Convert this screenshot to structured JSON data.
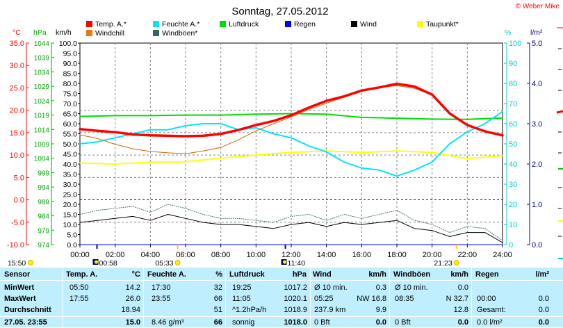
{
  "header": {
    "title": "Sonntag, 27.05.2012",
    "copyright": "© Weber Mike"
  },
  "legend": [
    {
      "label": "Temp. A.*",
      "color": "#ff0000"
    },
    {
      "label": "Feuchte A.*",
      "color": "#00e5ff"
    },
    {
      "label": "Luftdruck",
      "color": "#00dd00"
    },
    {
      "label": "Regen",
      "color": "#0000ff"
    },
    {
      "label": "Wind",
      "color": "#000000"
    },
    {
      "label": "Taupunkt*",
      "color": "#ffff00"
    },
    {
      "label": "Windchill",
      "color": "#ee7711"
    },
    {
      "label": "Windböen*",
      "color": "#336666"
    }
  ],
  "axes": {
    "unit_temp": "°C",
    "unit_hpa": "hPa",
    "unit_kmh": "km/h",
    "unit_pct": "%",
    "unit_rain": "l/m²",
    "temp_ticks": [
      "35.0",
      "30.0",
      "25.0",
      "20.0",
      "15.0",
      "10.0",
      "5.0",
      "0.0",
      "-5.0",
      "-10.0"
    ],
    "hpa_ticks": [
      "1044",
      "1039",
      "1034",
      "1029",
      "1024",
      "1019",
      "1014",
      "1009",
      "1004",
      "999",
      "994",
      "989",
      "984",
      "979",
      "974"
    ],
    "kmh_ticks": [
      "100.0",
      "95.0",
      "90.0",
      "85.0",
      "80.0",
      "75.0",
      "70.0",
      "65.0",
      "60.0",
      "55.0",
      "50.0",
      "45.0",
      "40.0",
      "35.0",
      "30.0",
      "25.0",
      "20.0",
      "15.0",
      "10.0",
      "5.0",
      "0.0"
    ],
    "pct_ticks": [
      "100",
      "90",
      "80",
      "70",
      "60",
      "50",
      "40",
      "30",
      "20",
      "10",
      "0"
    ],
    "rain_ticks": [
      "5.0",
      "4.0",
      "3.0",
      "2.0",
      "1.0",
      "0.0"
    ],
    "time_ticks": [
      "00:00",
      "02:00",
      "04:00",
      "06:00",
      "08:00",
      "10:00",
      "12:00",
      "14:00",
      "16:00",
      "18:00",
      "20:00",
      "22:00",
      "24:00"
    ]
  },
  "markers": {
    "sunrise": "05:33",
    "sunset": "21:23",
    "moonrise": "00:58",
    "moonset": "11:40",
    "left_time": "15:50"
  },
  "chart_data": {
    "type": "line",
    "x_unit": "hours",
    "x_range": [
      0,
      24
    ],
    "series": [
      {
        "name": "Temp. A.*",
        "unit": "°C",
        "axis": "temp",
        "x": [
          0,
          1,
          2,
          3,
          4,
          5,
          6,
          7,
          8,
          9,
          10,
          11,
          12,
          13,
          14,
          15,
          16,
          17,
          18,
          19,
          20,
          21,
          22,
          23,
          24
        ],
        "y": [
          15.8,
          15.4,
          15.1,
          14.6,
          14.4,
          14.3,
          14.2,
          14.3,
          14.7,
          15.6,
          16.7,
          17.6,
          18.9,
          20.6,
          22.1,
          23.1,
          24.4,
          25.1,
          25.9,
          25.3,
          23.5,
          19.3,
          16.7,
          15.3,
          14.4
        ]
      },
      {
        "name": "Windchill",
        "unit": "°C",
        "axis": "temp",
        "x": [
          0,
          1,
          2,
          3,
          4,
          5,
          6,
          7,
          8,
          9,
          10,
          11,
          12,
          13,
          14,
          15,
          16,
          17,
          18,
          19,
          20,
          21,
          22,
          23,
          24
        ],
        "y": [
          14.5,
          13.7,
          12.4,
          11.4,
          10.8,
          10.5,
          10.3,
          10.9,
          11.7,
          13.4,
          15.4,
          17.0,
          18.5,
          20.2,
          21.6,
          22.9,
          24.2,
          25.1,
          25.5,
          24.9,
          23.4,
          19.1,
          16.6,
          15.3,
          14.4
        ]
      },
      {
        "name": "Feuchte A.*",
        "unit": "%",
        "axis": "pct",
        "x": [
          0,
          1,
          2,
          3,
          4,
          5,
          6,
          7,
          8,
          9,
          10,
          11,
          12,
          13,
          14,
          15,
          16,
          17,
          18,
          19,
          20,
          21,
          22,
          23,
          24
        ],
        "y": [
          50,
          51,
          53,
          55,
          57,
          57,
          59,
          60,
          60,
          57,
          58,
          55,
          53,
          49,
          46,
          41,
          38,
          37,
          34,
          37,
          41,
          50,
          56,
          60,
          66
        ]
      },
      {
        "name": "Luftdruck",
        "unit": "hPa",
        "axis": "hpa",
        "x": [
          0,
          2,
          4,
          6,
          8,
          10,
          12,
          14,
          16,
          18,
          20,
          22,
          24
        ],
        "y": [
          1018.5,
          1018.8,
          1018.8,
          1019.0,
          1019.0,
          1019.3,
          1019.5,
          1019.3,
          1018.2,
          1017.9,
          1017.6,
          1017.5,
          1018.0
        ]
      },
      {
        "name": "Taupunkt*",
        "unit": "°C",
        "axis": "temp",
        "x": [
          0,
          2,
          4,
          6,
          8,
          10,
          12,
          14,
          16,
          18,
          20,
          22,
          24
        ],
        "y": [
          8.2,
          8.0,
          8.4,
          8.5,
          9.3,
          10.0,
          10.6,
          10.9,
          10.6,
          10.9,
          10.6,
          9.2,
          9.9
        ]
      },
      {
        "name": "Wind",
        "unit": "km/h",
        "axis": "kmh",
        "x": [
          0,
          1,
          2,
          3,
          4,
          5,
          6,
          7,
          8,
          9,
          10,
          11,
          12,
          13,
          14,
          15,
          16,
          17,
          18,
          19,
          20,
          21,
          22,
          23,
          24
        ],
        "y": [
          11,
          12,
          13,
          14,
          12,
          15,
          13,
          11,
          10,
          10,
          9,
          8,
          10,
          11,
          9,
          11,
          10,
          11,
          12,
          8,
          7,
          4,
          6,
          6,
          1
        ]
      },
      {
        "name": "Windböen*",
        "unit": "km/h",
        "axis": "kmh",
        "x": [
          0,
          1,
          2,
          3,
          4,
          5,
          6,
          7,
          8,
          9,
          10,
          11,
          12,
          13,
          14,
          15,
          16,
          17,
          18,
          19,
          20,
          21,
          22,
          23,
          24
        ],
        "y": [
          15,
          17,
          18,
          19,
          16,
          20,
          18,
          15,
          13,
          13,
          12,
          11,
          14,
          15,
          12,
          15,
          13,
          15,
          17,
          12,
          10,
          6,
          9,
          8,
          2
        ]
      },
      {
        "name": "Regen",
        "unit": "l/m²",
        "axis": "rain",
        "x": [
          0,
          24
        ],
        "y": [
          0,
          0
        ]
      }
    ],
    "axis_ranges": {
      "temp": [
        -10,
        35
      ],
      "hpa": [
        974,
        1044
      ],
      "kmh": [
        0,
        100
      ],
      "pct": [
        0,
        100
      ],
      "rain": [
        0,
        5
      ]
    },
    "grid": true
  },
  "table": {
    "headers": {
      "sensor": "Sensor",
      "temp": "Temp. A.",
      "temp_unit": "°C",
      "hum": "Feuchte A.",
      "hum_unit": "%",
      "press": "Luftdruck",
      "press_unit": "hPa",
      "wind": "Wind",
      "wind_unit": "km/h",
      "gust": "Windböen",
      "gust_unit": "km/h",
      "rain": "Regen",
      "rain_unit": "l/m²"
    },
    "rows": [
      {
        "label": "MinWert",
        "temp_t": "05:50",
        "temp_v": "14.2",
        "hum_t": "17:30",
        "hum_v": "32",
        "press_t": "19:25",
        "press_v": "1017.2",
        "wind_t": "Ø 10 min.",
        "wind_v": "0.3",
        "gust_t": "Ø 10 min.",
        "gust_v": "0.0",
        "rain_t": "",
        "rain_v": ""
      },
      {
        "label": "MaxWert",
        "temp_t": "17:55",
        "temp_v": "26.0",
        "hum_t": "23:55",
        "hum_v": "66",
        "press_t": "11:05",
        "press_v": "1020.1",
        "wind_t": "05:25",
        "wind_m": "NW 16.8",
        "gust_t": "08:35",
        "gust_v": "N 32.7",
        "rain_t": "00:00",
        "rain_v": "0.0"
      },
      {
        "label": "Durchschnitt",
        "temp_t": "",
        "temp_v": "18.94",
        "hum_t": "",
        "hum_v": "51",
        "press_t": "^1.2hPa/h",
        "press_v": "1018.9",
        "wind_t": "237.9 km",
        "wind_v": "9.9",
        "gust_t": "",
        "gust_v": "12.8",
        "rain_t": "Gesamt:",
        "rain_v": "0.0"
      },
      {
        "label": "27.05. 23:55",
        "temp_t": "",
        "temp_v": "15.0",
        "hum_t": "8.46 g/m³",
        "hum_v": "66",
        "press_t": "sonnig",
        "press_v": "1018.0",
        "wind_t": "0 Bft",
        "wind_v": "0.0",
        "gust_t": "0 Bft",
        "gust_v": "0.0",
        "rain_t": "0.0 l/m²",
        "rain_v": "0.0"
      }
    ]
  }
}
